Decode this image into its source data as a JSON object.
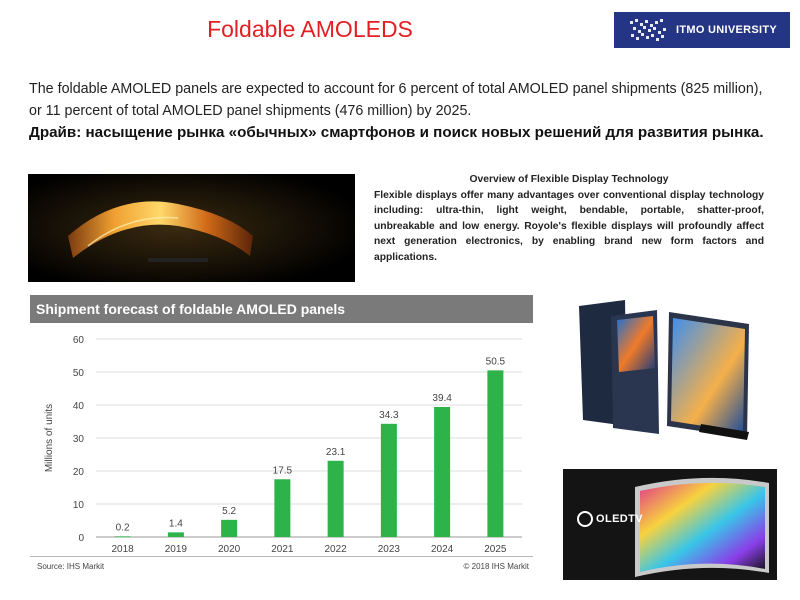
{
  "title": "Foldable AMOLEDS",
  "logo": {
    "text": "ITMO UNIVERSITY"
  },
  "intro": {
    "text": "The foldable AMOLED panels are expected to account for 6 percent of total AMOLED panel shipments (825 million), or 11 percent of total AMOLED panel shipments (476 million) by 2025.",
    "drive": "Драйв: насыщение рынка «обычных» смартфонов и поиск новых решений для развития рынка."
  },
  "overview": {
    "title": "Overview of Flexible Display Technology",
    "body": "Flexible displays offer many advantages over conventional display technology  including: ultra-thin, light weight, bendable, portable, shatter-proof, unbreakable  and low energy. Royole's flexible displays will profoundly affect next generation electronics, by enabling brand new form factors and applications."
  },
  "tv_logo": {
    "text": "OLEDTV"
  },
  "colors": {
    "title": "#e31e24",
    "bar": "#2db34a",
    "logo_bg": "#243585",
    "chart_header": "#7a7a7a"
  },
  "chart_data": {
    "type": "bar",
    "title": "Shipment forecast of foldable AMOLED panels",
    "ylabel": "Millions of units",
    "xlabel": "",
    "categories": [
      "2018",
      "2019",
      "2020",
      "2021",
      "2022",
      "2023",
      "2024",
      "2025"
    ],
    "values": [
      0.2,
      1.4,
      5.2,
      17.5,
      23.1,
      34.3,
      39.4,
      50.5
    ],
    "value_labels": [
      "0.2",
      "1.4",
      "5.2",
      "17.5",
      "23.1",
      "34.3",
      "39.4",
      "50.5"
    ],
    "ylim": [
      0,
      60
    ],
    "yticks": [
      0,
      10,
      20,
      30,
      40,
      50,
      60
    ],
    "grid": true,
    "source": "Source: IHS Markit",
    "copyright": "© 2018 IHS Markit"
  }
}
